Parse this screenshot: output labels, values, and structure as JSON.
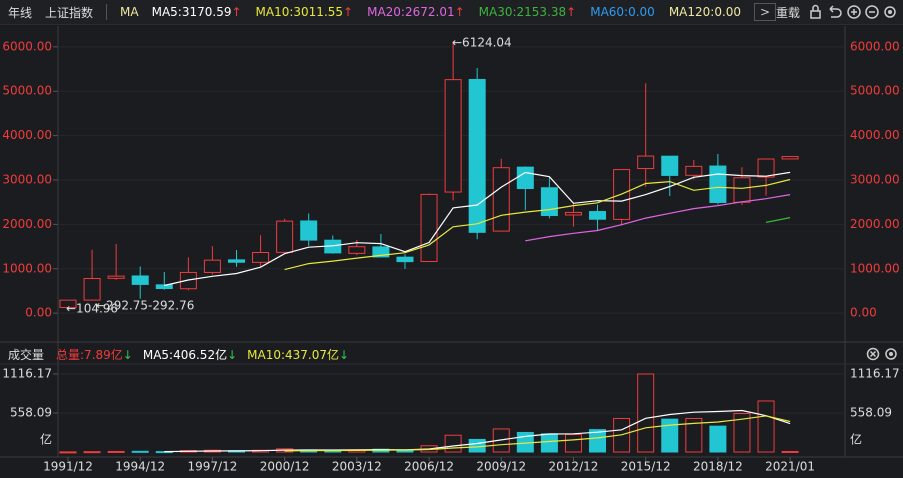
{
  "toolbar": {
    "period": "年线",
    "index": "上证指数",
    "ma": "MA",
    "items": [
      {
        "text": "MA5:3170.59",
        "arrow": "↑",
        "color": "#ffffff",
        "arrow_color": "#f03c3c"
      },
      {
        "text": "MA10:3011.55",
        "arrow": "↑",
        "color": "#e8e83a",
        "arrow_color": "#f03c3c"
      },
      {
        "text": "MA20:2672.01",
        "arrow": "↑",
        "color": "#e066e0",
        "arrow_color": "#f03c3c"
      },
      {
        "text": "MA30:2153.38",
        "arrow": "↑",
        "color": "#3cb43c",
        "arrow_color": "#f03c3c"
      },
      {
        "text": "MA60:0.00",
        "color": "#2e9cf0"
      },
      {
        "text": "MA120:0.00",
        "color": "#f0e8a0"
      }
    ],
    "more": ">",
    "reload": "重载"
  },
  "volume_header": {
    "title": "成交量",
    "items": [
      {
        "text": "总量:7.89亿",
        "arrow": "↓",
        "color": "#f03c3c",
        "arrow_color": "#2ec84a"
      },
      {
        "text": "MA5:406.52亿",
        "arrow": "↓",
        "color": "#ffffff",
        "arrow_color": "#2ec84a"
      },
      {
        "text": "MA10:437.07亿",
        "arrow": "↓",
        "color": "#e8e83a",
        "arrow_color": "#2ec84a"
      }
    ]
  },
  "chart_data": [
    {
      "type": "candlestick",
      "up_color": "#f03c3c",
      "down_color": "#22c6d3",
      "ohlc": {
        "open": [
          127.61,
          293.74,
          784.13,
          837.7,
          637.72,
          550.26,
          917.01,
          1200.95,
          1144.89,
          1368.69,
          2077.07,
          1643.48,
          1347.43,
          1492.72,
          1260.78,
          1163.88,
          2728.19,
          5265.0,
          1849.02,
          3289.75,
          2825.33,
          2212.0,
          2289.51,
          2112.13,
          3258.63,
          3536.59,
          3105.31,
          3314.03,
          2497.88,
          3066.34,
          3474.68
        ],
        "high": [
          292.75,
          1429.01,
          1558.95,
          1052.94,
          926.41,
          1258.69,
          1510.18,
          1422.98,
          1756.18,
          2125.72,
          2245.43,
          1748.89,
          1649.6,
          1783.01,
          1328.53,
          2698.9,
          6124.04,
          5522.78,
          3478.01,
          3306.75,
          3067.46,
          2478.38,
          2444.8,
          3239.36,
          5178.19,
          3538.69,
          3450.49,
          3587.03,
          3288.45,
          3474.92,
          3536.59
        ],
        "low": [
          104.96,
          292.76,
          750.46,
          325.89,
          524.43,
          512.83,
          870.18,
          1043.02,
          1047.83,
          1361.21,
          1514.86,
          1339.2,
          1307.4,
          1259.43,
          998.23,
          1161.91,
          2541.53,
          1664.93,
          1844.09,
          2319.74,
          2134.02,
          1949.46,
          1849.65,
          1974.38,
          2850.71,
          2638.3,
          3016.53,
          2449.2,
          2440.91,
          2646.8,
          3474.68
        ],
        "close": [
          292.75,
          780.39,
          833.8,
          647.87,
          555.29,
          917.01,
          1194.1,
          1146.7,
          1366.58,
          2073.48,
          1645.97,
          1357.65,
          1497.04,
          1266.5,
          1161.06,
          2675.47,
          5261.56,
          1820.81,
          3277.14,
          2808.08,
          2199.42,
          2269.13,
          2115.98,
          3234.68,
          3539.18,
          3103.64,
          3307.17,
          2493.9,
          3050.12,
          3473.07,
          3528.69
        ]
      },
      "lines": [
        {
          "color": "#ffffff",
          "values": [
            null,
            null,
            null,
            null,
            622.0,
            746.9,
            829.6,
            892.2,
            1035.9,
            1339.6,
            1485.4,
            1518.1,
            1588.1,
            1568.1,
            1385.6,
            1591.5,
            2372.3,
            2437.1,
            2839.2,
            3168.6,
            3073.4,
            2474.9,
            2534.0,
            2525.5,
            2671.7,
            2852.5,
            3060.1,
            3135.7,
            3098.8,
            3085.6,
            3170.59
          ]
        },
        {
          "color": "#e8e83a",
          "values": [
            null,
            null,
            null,
            null,
            null,
            null,
            null,
            null,
            null,
            980.8,
            1116.1,
            1173.8,
            1240.2,
            1302.0,
            1362.6,
            1538.5,
            1945.2,
            2012.6,
            2203.7,
            2277.1,
            2332.5,
            2423.6,
            2485.5,
            2682.3,
            2920.1,
            2963.0,
            2767.5,
            2834.8,
            2812.1,
            2878.6,
            3011.55
          ]
        },
        {
          "color": "#e066e0",
          "values": [
            null,
            null,
            null,
            null,
            null,
            null,
            null,
            null,
            null,
            null,
            null,
            null,
            null,
            null,
            null,
            null,
            null,
            null,
            null,
            1629.0,
            1724.3,
            1798.7,
            1862.8,
            1992.2,
            2141.4,
            2250.7,
            2356.4,
            2423.7,
            2507.9,
            2577.9,
            2672.01
          ]
        },
        {
          "color": "#3cb43c",
          "values": [
            null,
            null,
            null,
            null,
            null,
            null,
            null,
            null,
            null,
            null,
            null,
            null,
            null,
            null,
            null,
            null,
            null,
            null,
            null,
            null,
            null,
            null,
            null,
            null,
            null,
            null,
            null,
            null,
            null,
            2045.5,
            2153.38
          ]
        }
      ],
      "ylim": [
        -560,
        6470
      ],
      "yticks": [
        {
          "value": 0,
          "label": "0.00"
        },
        {
          "value": 1000,
          "label": "1000.00"
        },
        {
          "value": 2000,
          "label": "2000.00"
        },
        {
          "value": 3000,
          "label": "3000.00"
        },
        {
          "value": 4000,
          "label": "4000.00"
        },
        {
          "value": 5000,
          "label": "5000.00"
        },
        {
          "value": 6000,
          "label": "6000.00"
        }
      ],
      "grid": true,
      "tick_color": "#f03c3c",
      "annotations": [
        "←6124.04",
        "←104.96",
        "←292.75-292.76"
      ]
    },
    {
      "type": "volume",
      "categories": [
        "1991/12",
        null,
        null,
        "1994/12",
        null,
        null,
        "1997/12",
        null,
        null,
        "2000/12",
        null,
        null,
        "2003/12",
        null,
        null,
        "2006/12",
        null,
        null,
        "2009/12",
        null,
        null,
        "2012/12",
        null,
        null,
        "2015/12",
        null,
        null,
        "2018/12",
        null,
        null,
        "2021/01"
      ],
      "values": [
        2,
        5,
        8,
        10,
        6,
        22,
        25,
        18,
        25,
        45,
        30,
        25,
        30,
        40,
        30,
        90,
        240,
        180,
        330,
        280,
        260,
        250,
        320,
        480,
        1116.17,
        470,
        480,
        370,
        550,
        730,
        7.89
      ],
      "lines": [
        {
          "color": "#ffffff",
          "values": [
            null,
            null,
            null,
            null,
            6.2,
            10.2,
            14.2,
            16.2,
            19.2,
            27,
            28.6,
            28.6,
            31,
            34,
            31,
            43,
            86,
            122,
            174,
            224,
            258,
            260,
            284,
            318,
            482,
            536,
            570,
            580,
            594,
            520,
            406.52
          ]
        },
        {
          "color": "#e8e83a",
          "values": [
            null,
            null,
            null,
            null,
            null,
            null,
            null,
            null,
            null,
            16.6,
            19.4,
            21.4,
            23.6,
            26.6,
            29,
            35.8,
            57.3,
            73.5,
            104,
            127.5,
            150.5,
            173,
            202,
            246,
            347,
            385,
            409,
            430,
            470,
            517,
            437.07
          ]
        }
      ],
      "ylim": [
        -57,
        1259
      ],
      "yticks": [
        558.09,
        1116.17
      ],
      "unit": "亿",
      "grid": true,
      "tick_color": "#dddddd"
    }
  ]
}
